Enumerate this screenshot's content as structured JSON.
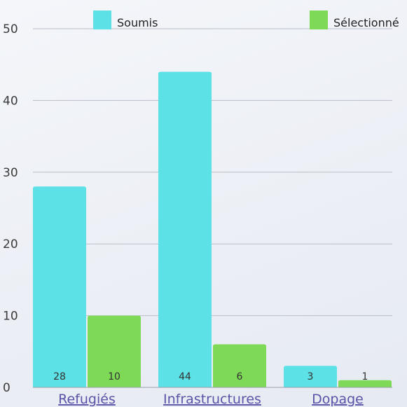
{
  "chart_data": {
    "type": "bar",
    "categories": [
      "Refugiés",
      "Infrastructures",
      "Dopage"
    ],
    "series": [
      {
        "name": "Soumis",
        "values": [
          28,
          44,
          3
        ],
        "color": "#5ce1e6"
      },
      {
        "name": "Sélectionné",
        "values": [
          10,
          6,
          1
        ],
        "color": "#7ed957"
      }
    ],
    "yticks": [
      0,
      10,
      20,
      30,
      40,
      50
    ],
    "ylim": [
      0,
      50
    ],
    "grid": true,
    "legend_position": "top",
    "data_labels": true
  }
}
